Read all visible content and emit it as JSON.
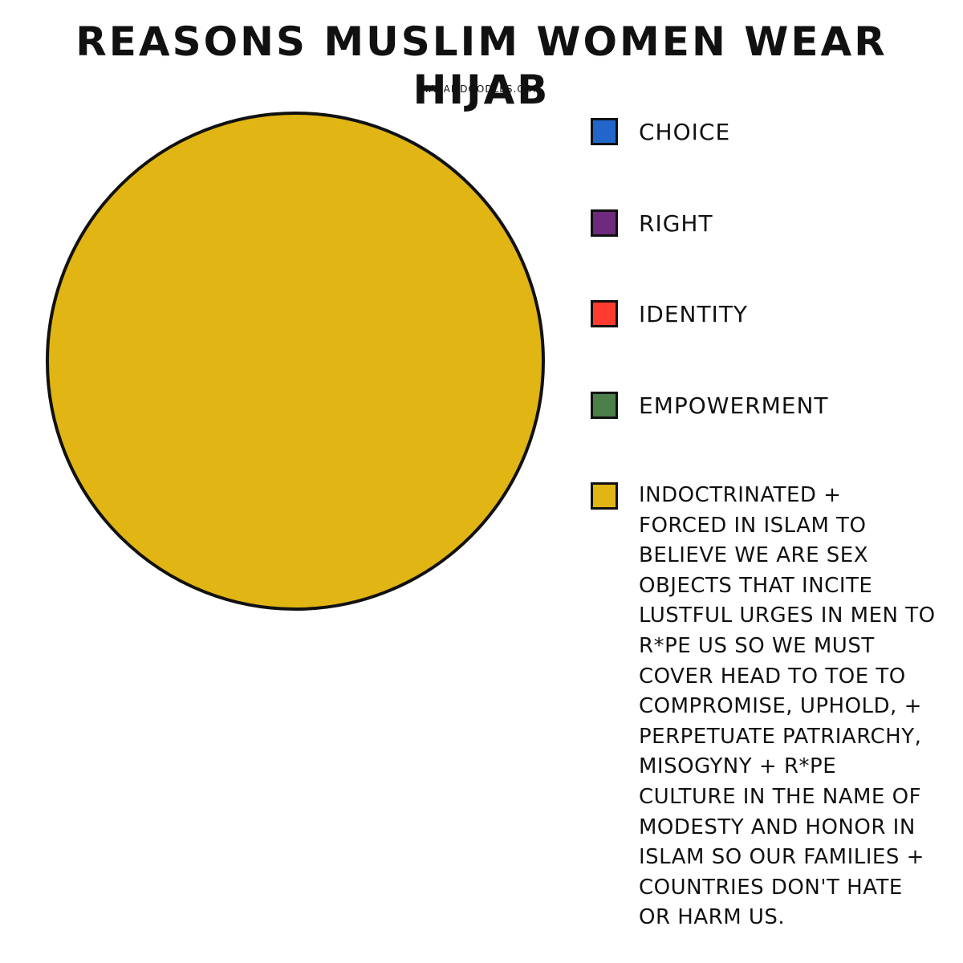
{
  "chart_data": {
    "type": "pie",
    "title": "Reasons Muslim Women Wear Hijab",
    "subtitle": "haramdoodles.com",
    "categories": [
      "Choice",
      "Right",
      "Identity",
      "Empowerment",
      "Indoctrinated + forced in Islam to believe we are sex objects that incite lustful urges in men to r*pe us so we must cover head to toe to compromise, uphold, + perpetuate patriarchy, misogyny + r*pe culture in the name of modesty and honor in Islam so our families + countries don't hate or harm us."
    ],
    "values": [
      0,
      0,
      0,
      0,
      100
    ],
    "colors": [
      "#2266cc",
      "#6e2a7c",
      "#ff3b30",
      "#4a7f4a",
      "#e0b514"
    ],
    "legend_position": "right",
    "outline_color": "#111111"
  }
}
